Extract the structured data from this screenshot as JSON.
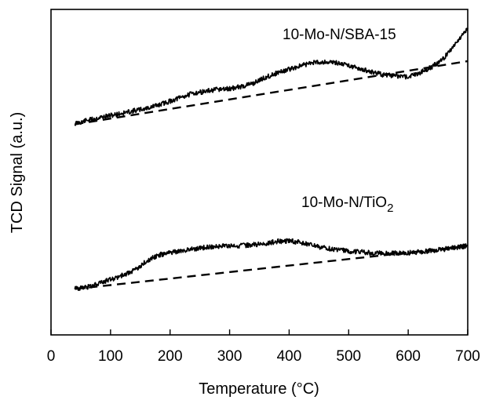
{
  "chart_data": {
    "type": "line",
    "xlabel": "Temperature (°C)",
    "ylabel": "TCD Signal (a.u.)",
    "xlim": [
      0,
      700
    ],
    "ylim": [
      0,
      1
    ],
    "x_ticks": [
      0,
      100,
      200,
      300,
      400,
      500,
      600,
      700
    ],
    "y_ticks": [],
    "grid": false,
    "legend": "none",
    "colors": {
      "series": "#000000",
      "baseline": "#000000"
    },
    "series": [
      {
        "name": "10-Mo-N/SBA-15",
        "label_text": "10-Mo-N/SBA-15",
        "x": [
          40,
          60,
          80,
          100,
          120,
          140,
          160,
          180,
          200,
          220,
          240,
          260,
          280,
          300,
          320,
          340,
          360,
          380,
          400,
          420,
          440,
          460,
          480,
          500,
          520,
          540,
          560,
          580,
          600,
          620,
          640,
          660,
          680,
          700
        ],
        "y": [
          0.649,
          0.659,
          0.667,
          0.674,
          0.681,
          0.689,
          0.696,
          0.706,
          0.718,
          0.731,
          0.743,
          0.748,
          0.754,
          0.756,
          0.763,
          0.773,
          0.791,
          0.805,
          0.816,
          0.827,
          0.837,
          0.839,
          0.836,
          0.829,
          0.816,
          0.808,
          0.798,
          0.796,
          0.793,
          0.806,
          0.823,
          0.851,
          0.897,
          0.943
        ],
        "baseline": {
          "x": [
            40,
            700
          ],
          "y": [
            0.647,
            0.841
          ]
        }
      },
      {
        "name": "10-Mo-N/TiO2",
        "label_text": "10-Mo-N/TiO",
        "label_subscript": "2",
        "x": [
          40,
          60,
          80,
          100,
          120,
          140,
          160,
          180,
          200,
          220,
          240,
          260,
          280,
          300,
          320,
          340,
          360,
          380,
          400,
          420,
          440,
          460,
          480,
          500,
          520,
          540,
          560,
          580,
          600,
          620,
          640,
          660,
          680,
          700
        ],
        "y": [
          0.141,
          0.146,
          0.158,
          0.17,
          0.183,
          0.198,
          0.226,
          0.245,
          0.253,
          0.259,
          0.264,
          0.269,
          0.273,
          0.273,
          0.274,
          0.277,
          0.281,
          0.287,
          0.289,
          0.284,
          0.274,
          0.267,
          0.262,
          0.257,
          0.255,
          0.251,
          0.251,
          0.251,
          0.252,
          0.255,
          0.259,
          0.263,
          0.268,
          0.274
        ],
        "baseline": {
          "x": [
            40,
            700
          ],
          "y": [
            0.141,
            0.273
          ]
        }
      }
    ]
  }
}
